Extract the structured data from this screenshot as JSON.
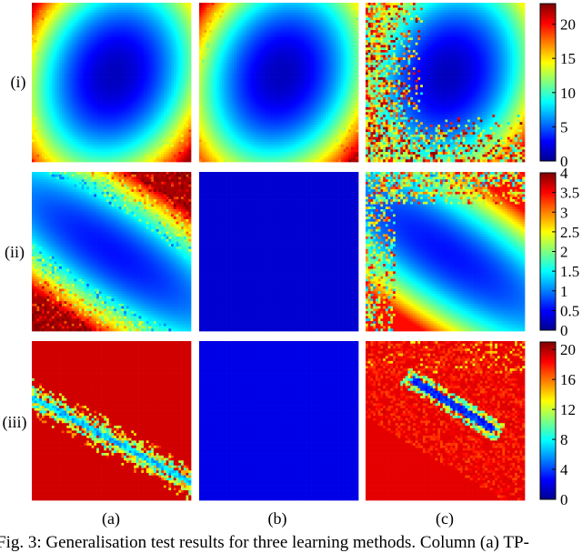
{
  "figure": {
    "caption": "Fig. 3: Generalisation test results for three learning methods. Column (a) TP-"
  },
  "row_labels": [
    "(i)",
    "(ii)",
    "(iii)"
  ],
  "col_labels": [
    "(a)",
    "(b)",
    "(c)"
  ],
  "colormap": "jet",
  "chart_data": [
    {
      "type": "heatmap",
      "row": "(i)",
      "panels": [
        "(a)",
        "(b)",
        "(c)"
      ],
      "colorbar": {
        "ticks": [
          0,
          5,
          10,
          15,
          20
        ],
        "range": [
          0,
          23
        ]
      },
      "patterns": [
        {
          "panel": "(a)",
          "shape": "elliptic bowl",
          "minimum": 0,
          "noise": "low"
        },
        {
          "panel": "(b)",
          "shape": "elliptic bowl",
          "minimum": 0,
          "noise": "low"
        },
        {
          "panel": "(c)",
          "shape": "elliptic bowl",
          "minimum": 0,
          "noise": "high at left and bottom edges"
        }
      ]
    },
    {
      "type": "heatmap",
      "row": "(ii)",
      "panels": [
        "(a)",
        "(b)",
        "(c)"
      ],
      "colorbar": {
        "ticks": [
          0,
          0.5,
          1,
          1.5,
          2,
          2.5,
          3,
          3.5,
          4
        ],
        "range": [
          0,
          4
        ]
      },
      "patterns": [
        {
          "panel": "(a)",
          "shape": "diagonal valley",
          "noise": "moderate"
        },
        {
          "panel": "(b)",
          "shape": "uniform",
          "value": 0
        },
        {
          "panel": "(c)",
          "shape": "diagonal valley",
          "noise": "high at top and left edges"
        }
      ]
    },
    {
      "type": "heatmap",
      "row": "(iii)",
      "panels": [
        "(a)",
        "(b)",
        "(c)"
      ],
      "colorbar": {
        "ticks": [
          0,
          4,
          8,
          12,
          16,
          20
        ],
        "range": [
          0,
          21
        ]
      },
      "patterns": [
        {
          "panel": "(a)",
          "shape": "saturated with thin diagonal band",
          "value": 21
        },
        {
          "panel": "(b)",
          "shape": "uniform",
          "value": 0
        },
        {
          "panel": "(c)",
          "shape": "saturated with diagonal band and orange halo",
          "value": 20
        }
      ]
    }
  ]
}
